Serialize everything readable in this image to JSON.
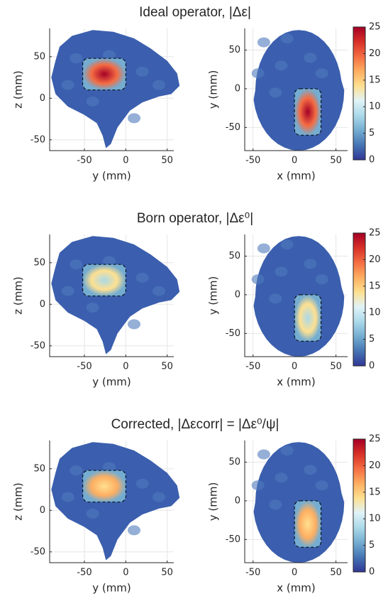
{
  "chart_data": [
    {
      "type": "heatmap",
      "title": "Ideal operator, |Δε|",
      "panels": [
        {
          "xlabel": "y (mm)",
          "ylabel": "z (mm)",
          "xlim": [
            -92,
            58
          ],
          "ylim": [
            -63,
            84
          ],
          "xticks": [
            -50,
            0,
            50
          ],
          "yticks": [
            -50,
            0,
            50
          ]
        },
        {
          "xlabel": "x (mm)",
          "ylabel": "y (mm)",
          "xlim": [
            -60,
            64
          ],
          "ylim": [
            -80,
            78
          ],
          "xticks": [
            -50,
            0,
            50
          ],
          "yticks": [
            -50,
            0,
            50
          ]
        }
      ],
      "colorbar": {
        "clim": [
          0,
          25
        ],
        "ticks": [
          0,
          5,
          10,
          15,
          20,
          25
        ]
      },
      "grid": true
    },
    {
      "type": "heatmap",
      "title": "Born operator, |Δε⁰|",
      "panels": [
        {
          "xlabel": "y (mm)",
          "ylabel": "z (mm)",
          "xlim": [
            -92,
            58
          ],
          "ylim": [
            -63,
            84
          ],
          "xticks": [
            -50,
            0,
            50
          ],
          "yticks": [
            -50,
            0,
            50
          ]
        },
        {
          "xlabel": "x (mm)",
          "ylabel": "y (mm)",
          "xlim": [
            -60,
            64
          ],
          "ylim": [
            -80,
            78
          ],
          "xticks": [
            -50,
            0,
            50
          ],
          "yticks": [
            -50,
            0,
            50
          ]
        }
      ],
      "colorbar": {
        "clim": [
          0,
          25
        ],
        "ticks": [
          0,
          5,
          10,
          15,
          20,
          25
        ]
      },
      "grid": true
    },
    {
      "type": "heatmap",
      "title": "Corrected, |Δεcorr| = |Δε⁰/ψ|",
      "panels": [
        {
          "xlabel": "y (mm)",
          "ylabel": "z (mm)",
          "xlim": [
            -92,
            58
          ],
          "ylim": [
            -63,
            84
          ],
          "xticks": [
            -50,
            0,
            50
          ],
          "yticks": [
            -50,
            0,
            50
          ]
        },
        {
          "xlabel": "x (mm)",
          "ylabel": "y (mm)",
          "xlim": [
            -60,
            64
          ],
          "ylim": [
            -80,
            78
          ],
          "xticks": [
            -50,
            0,
            50
          ],
          "yticks": [
            -50,
            0,
            50
          ]
        }
      ],
      "colorbar": {
        "clim": [
          0,
          25
        ],
        "ticks": [
          0,
          5,
          10,
          15,
          20,
          25
        ]
      },
      "grid": true
    }
  ]
}
